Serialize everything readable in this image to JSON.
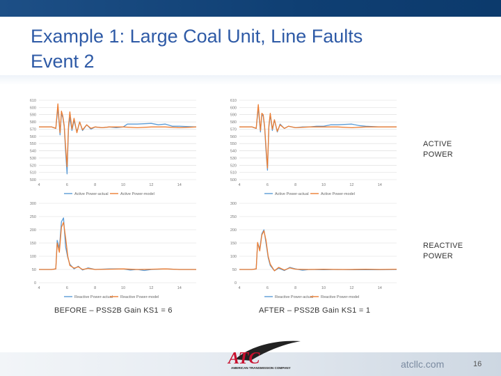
{
  "slide": {
    "title_line1": "Example 1: Large Coal Unit, Line Faults",
    "title_line2": "Event 2",
    "label_active_1": "ACTIVE",
    "label_active_2": "POWER",
    "label_reactive_1": "REACTIVE",
    "label_reactive_2": "POWER",
    "caption_before": "BEFORE – PSS2B Gain KS1 = 6",
    "caption_after": "AFTER  – PSS2B Gain KS1 = 1",
    "logo_text": "ATC",
    "logo_subtext": "AMERICAN TRANSMISSION COMPANY",
    "website": "atcllc.com",
    "page_number": "16",
    "colors": {
      "actual": "#5b9bd5",
      "model": "#ed7d31",
      "title": "#2e5aa6",
      "grid": "#d9d9d9"
    }
  },
  "chart_data": [
    {
      "type": "line",
      "id": "active-before",
      "xlim": [
        4,
        15.2
      ],
      "ylim": [
        500,
        610
      ],
      "xticks": [
        4,
        6,
        8,
        10,
        12,
        14
      ],
      "yticks": [
        500,
        510,
        520,
        530,
        540,
        550,
        560,
        570,
        580,
        590,
        600,
        610
      ],
      "series": [
        {
          "name": "Active Power-actual",
          "color": "#5b9bd5",
          "x": [
            4,
            4.9,
            5.2,
            5.35,
            5.5,
            5.6,
            5.7,
            5.8,
            5.9,
            6.0,
            6.1,
            6.2,
            6.35,
            6.5,
            6.7,
            6.9,
            7.1,
            7.4,
            7.7,
            8.0,
            8.5,
            9.0,
            9.5,
            10.0,
            10.3,
            11,
            12,
            12.5,
            13,
            13.5,
            14,
            15.2
          ],
          "y": [
            573,
            573,
            571,
            600,
            562,
            592,
            586,
            573,
            538,
            508,
            570,
            586,
            568,
            582,
            566,
            580,
            568,
            576,
            570,
            573,
            572,
            573,
            572,
            573,
            577,
            577,
            578,
            576,
            577,
            574,
            574,
            573
          ]
        },
        {
          "name": "Active Power-model",
          "color": "#ed7d31",
          "x": [
            4,
            4.9,
            5.2,
            5.35,
            5.5,
            5.6,
            5.7,
            5.8,
            5.9,
            6.0,
            6.1,
            6.2,
            6.35,
            6.5,
            6.7,
            6.9,
            7.1,
            7.4,
            7.7,
            8.0,
            8.5,
            9.0,
            10,
            11,
            12,
            13,
            14,
            15.2
          ],
          "y": [
            573,
            573,
            571,
            605,
            565,
            595,
            588,
            575,
            545,
            518,
            574,
            594,
            570,
            585,
            565,
            580,
            569,
            576,
            571,
            573,
            572,
            573,
            573,
            572,
            573,
            573,
            572,
            573
          ]
        }
      ]
    },
    {
      "type": "line",
      "id": "active-after",
      "xlim": [
        4,
        15.2
      ],
      "ylim": [
        500,
        610
      ],
      "xticks": [
        4,
        6,
        8,
        10,
        12,
        14
      ],
      "yticks": [
        500,
        510,
        520,
        530,
        540,
        550,
        560,
        570,
        580,
        590,
        600,
        610
      ],
      "series": [
        {
          "name": "Active Power-actual",
          "color": "#5b9bd5",
          "x": [
            4,
            4.9,
            5.2,
            5.35,
            5.5,
            5.6,
            5.7,
            5.8,
            5.9,
            6.0,
            6.1,
            6.2,
            6.35,
            6.5,
            6.7,
            6.9,
            7.2,
            7.5,
            8.0,
            8.5,
            9.0,
            9.5,
            10,
            10.5,
            11,
            12,
            12.5,
            13,
            14,
            15.2
          ],
          "y": [
            573,
            573,
            571,
            600,
            566,
            590,
            588,
            572,
            540,
            513,
            572,
            590,
            568,
            583,
            566,
            577,
            571,
            574,
            572,
            573,
            573,
            574,
            574,
            576,
            576,
            577,
            575,
            574,
            573,
            573
          ]
        },
        {
          "name": "Active Power-model",
          "color": "#ed7d31",
          "x": [
            4,
            4.9,
            5.2,
            5.35,
            5.5,
            5.6,
            5.7,
            5.8,
            5.9,
            6.0,
            6.1,
            6.2,
            6.35,
            6.5,
            6.7,
            6.9,
            7.2,
            7.5,
            8.0,
            9,
            10,
            11,
            12,
            13,
            14,
            15.2
          ],
          "y": [
            573,
            573,
            571,
            604,
            568,
            592,
            590,
            574,
            545,
            516,
            575,
            592,
            570,
            583,
            567,
            576,
            571,
            574,
            572,
            573,
            573,
            573,
            572,
            573,
            573,
            573
          ]
        }
      ]
    },
    {
      "type": "line",
      "id": "reactive-before",
      "xlim": [
        4,
        15.2
      ],
      "ylim": [
        0,
        300
      ],
      "xticks": [
        4,
        6,
        8,
        10,
        12,
        14
      ],
      "yticks": [
        0,
        50,
        100,
        150,
        200,
        250,
        300
      ],
      "series": [
        {
          "name": "Reactive Power-actual",
          "color": "#5b9bd5",
          "x": [
            4,
            4.9,
            5.2,
            5.3,
            5.45,
            5.6,
            5.75,
            5.9,
            6.05,
            6.2,
            6.5,
            6.8,
            7.1,
            7.5,
            8,
            9,
            10,
            10.5,
            11,
            11.5,
            12,
            13,
            14,
            15.2
          ],
          "y": [
            50,
            50,
            52,
            160,
            130,
            230,
            245,
            135,
            95,
            70,
            52,
            62,
            48,
            56,
            50,
            52,
            52,
            48,
            50,
            46,
            50,
            52,
            50,
            50
          ]
        },
        {
          "name": "Reactive Power-model",
          "color": "#ed7d31",
          "x": [
            4,
            4.9,
            5.2,
            5.3,
            5.45,
            5.6,
            5.75,
            5.9,
            6.05,
            6.2,
            6.5,
            6.8,
            7.1,
            7.5,
            8,
            9,
            10,
            11,
            12,
            13,
            14,
            15.2
          ],
          "y": [
            50,
            50,
            52,
            150,
            115,
            210,
            228,
            170,
            100,
            65,
            55,
            60,
            50,
            54,
            50,
            51,
            52,
            50,
            51,
            52,
            50,
            50
          ]
        }
      ]
    },
    {
      "type": "line",
      "id": "reactive-after",
      "xlim": [
        4,
        15.2
      ],
      "ylim": [
        0,
        300
      ],
      "xticks": [
        4,
        6,
        8,
        10,
        12,
        14
      ],
      "yticks": [
        0,
        50,
        100,
        150,
        200,
        250,
        300
      ],
      "series": [
        {
          "name": "Reactive Power-actual",
          "color": "#5b9bd5",
          "x": [
            4,
            4.9,
            5.2,
            5.3,
            5.45,
            5.6,
            5.75,
            5.9,
            6.05,
            6.2,
            6.5,
            6.8,
            7.2,
            7.6,
            8,
            8.5,
            9,
            10,
            11,
            12,
            13,
            14,
            15.2
          ],
          "y": [
            50,
            50,
            52,
            150,
            128,
            185,
            200,
            150,
            95,
            65,
            45,
            55,
            46,
            58,
            52,
            47,
            50,
            49,
            50,
            49,
            49,
            49,
            50
          ]
        },
        {
          "name": "Reactive Power-model",
          "color": "#ed7d31",
          "x": [
            4,
            4.9,
            5.2,
            5.3,
            5.45,
            5.6,
            5.75,
            5.9,
            6.05,
            6.2,
            6.5,
            6.8,
            7.2,
            7.6,
            8,
            9,
            10,
            11,
            12,
            13,
            14,
            15.2
          ],
          "y": [
            50,
            50,
            52,
            152,
            120,
            180,
            196,
            160,
            100,
            70,
            45,
            58,
            48,
            56,
            51,
            50,
            51,
            50,
            50,
            51,
            50,
            51
          ]
        }
      ]
    }
  ]
}
